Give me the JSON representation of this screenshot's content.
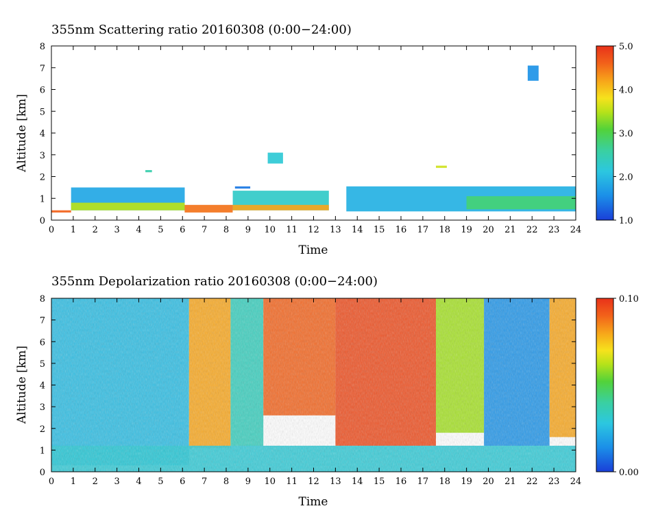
{
  "chart_data": [
    {
      "type": "heatmap",
      "title": "355nm Scattering ratio  20160308 (0:00−24:00)",
      "xlabel": "Time",
      "ylabel": "Altitude [km]",
      "xlim": [
        0,
        24
      ],
      "ylim": [
        0,
        8
      ],
      "x_ticks": [
        "0",
        "1",
        "2",
        "3",
        "4",
        "5",
        "6",
        "7",
        "8",
        "9",
        "10",
        "11",
        "12",
        "13",
        "14",
        "15",
        "16",
        "17",
        "18",
        "19",
        "20",
        "21",
        "22",
        "23",
        "24"
      ],
      "y_ticks": [
        "0",
        "1",
        "2",
        "3",
        "4",
        "5",
        "6",
        "7",
        "8"
      ],
      "colorbar": {
        "range": [
          1.0,
          5.0
        ],
        "tick_labels": [
          "1.0",
          "2.0",
          "3.0",
          "4.0",
          "5.0"
        ]
      },
      "features": [
        {
          "time": [
            0.0,
            0.9
          ],
          "altitude": [
            0.35,
            0.45
          ],
          "value": 4.6
        },
        {
          "time": [
            0.9,
            6.1
          ],
          "altitude": [
            0.45,
            1.5
          ],
          "value": 1.8
        },
        {
          "time": [
            0.9,
            6.1
          ],
          "altitude": [
            0.45,
            0.8
          ],
          "value": 3.5
        },
        {
          "time": [
            6.1,
            8.3
          ],
          "altitude": [
            0.35,
            0.7
          ],
          "value": 4.5
        },
        {
          "time": [
            8.3,
            12.7
          ],
          "altitude": [
            0.45,
            1.35
          ],
          "value": 2.3
        },
        {
          "time": [
            8.3,
            12.7
          ],
          "altitude": [
            0.45,
            0.7
          ],
          "value": 4.2
        },
        {
          "time": [
            13.5,
            24.0
          ],
          "altitude": [
            0.4,
            1.55
          ],
          "value": 1.9
        },
        {
          "time": [
            19.0,
            24.0
          ],
          "altitude": [
            0.5,
            1.1
          ],
          "value": 2.8
        },
        {
          "time": [
            4.3,
            4.6
          ],
          "altitude": [
            2.2,
            2.3
          ],
          "value": 2.5
        },
        {
          "time": [
            8.4,
            9.1
          ],
          "altitude": [
            1.45,
            1.55
          ],
          "value": 1.4
        },
        {
          "time": [
            9.9,
            10.6
          ],
          "altitude": [
            2.6,
            3.1
          ],
          "value": 2.2
        },
        {
          "time": [
            17.6,
            18.1
          ],
          "altitude": [
            2.4,
            2.5
          ],
          "value": 3.6
        },
        {
          "time": [
            21.8,
            22.3
          ],
          "altitude": [
            6.4,
            7.1
          ],
          "value": 1.6
        }
      ]
    },
    {
      "type": "heatmap",
      "title": "355nm Depolarization ratio  20160308 (0:00−24:00)",
      "xlabel": "Time",
      "ylabel": "Altitude [km]",
      "xlim": [
        0,
        24
      ],
      "ylim": [
        0,
        8
      ],
      "x_ticks": [
        "0",
        "1",
        "2",
        "3",
        "4",
        "5",
        "6",
        "7",
        "8",
        "9",
        "10",
        "11",
        "12",
        "13",
        "14",
        "15",
        "16",
        "17",
        "18",
        "19",
        "20",
        "21",
        "22",
        "23",
        "24"
      ],
      "y_ticks": [
        "0",
        "1",
        "2",
        "3",
        "4",
        "5",
        "6",
        "7",
        "8"
      ],
      "colorbar": {
        "range": [
          0.0,
          0.1
        ],
        "tick_labels": [
          "0.00",
          "0.10"
        ]
      },
      "features": [
        {
          "time": [
            0.0,
            6.3
          ],
          "altitude": [
            0.3,
            8.0
          ],
          "value": 0.025
        },
        {
          "time": [
            6.3,
            8.2
          ],
          "altitude": [
            1.1,
            8.0
          ],
          "value": 0.08
        },
        {
          "time": [
            8.2,
            9.7
          ],
          "altitude": [
            1.2,
            8.0
          ],
          "value": 0.035
        },
        {
          "time": [
            9.7,
            13.0
          ],
          "altitude": [
            2.6,
            8.0
          ],
          "value": 0.09
        },
        {
          "time": [
            13.0,
            17.6
          ],
          "altitude": [
            1.2,
            8.0
          ],
          "value": 0.095
        },
        {
          "time": [
            17.6,
            19.8
          ],
          "altitude": [
            1.8,
            8.0
          ],
          "value": 0.06
        },
        {
          "time": [
            19.8,
            22.8
          ],
          "altitude": [
            1.2,
            8.0
          ],
          "value": 0.015
        },
        {
          "time": [
            22.8,
            24.0
          ],
          "altitude": [
            1.6,
            8.0
          ],
          "value": 0.08
        },
        {
          "time": [
            0.0,
            24.0
          ],
          "altitude": [
            0.0,
            1.2
          ],
          "value": 0.03
        }
      ]
    }
  ]
}
